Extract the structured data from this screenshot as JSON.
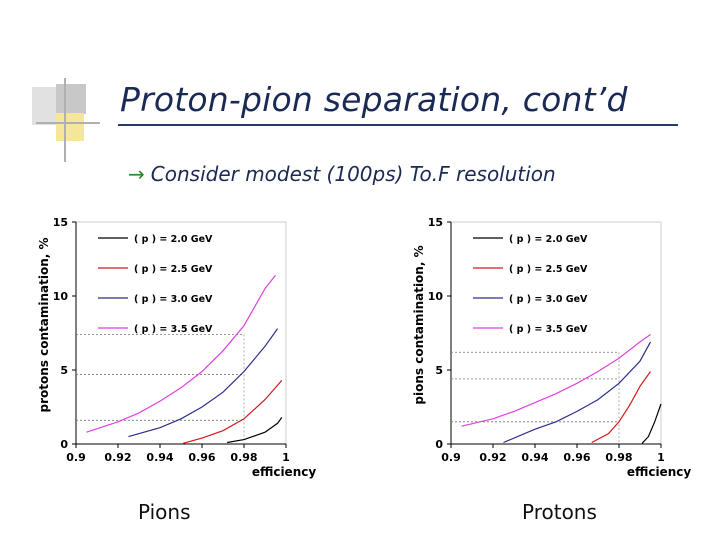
{
  "slide": {
    "title": "Proton-pion separation, cont’d",
    "bullet_arrow": "→",
    "bullet_text": "Consider modest (100ps) To.F resolution",
    "captions": [
      "Pions",
      "Protons"
    ]
  },
  "colors": {
    "deco_light": "#e1e1e1",
    "deco_mid": "#c8c8c8",
    "deco_yellow": "#f4e79a",
    "deco_lines": "#b0b0b0",
    "title": "#1b2a55",
    "arrow": "#2e8a2e",
    "series": [
      "#000000",
      "#d11a1a",
      "#2a2f8a",
      "#e040e0"
    ]
  },
  "chart_data": [
    {
      "type": "line",
      "panel": "pions",
      "xlabel": "efficiency",
      "ylabel": "protons contamination, %",
      "xlim": [
        0.9,
        1.0
      ],
      "ylim": [
        0,
        15
      ],
      "xticks": [
        "0.9",
        "0.92",
        "0.94",
        "0.96",
        "0.98",
        "1"
      ],
      "yticks": [
        "0",
        "5",
        "10",
        "15"
      ],
      "legend_position": "top-left",
      "series": [
        {
          "name": "( p ) = 2.0 GeV",
          "x": [
            0.972,
            0.98,
            0.99,
            0.996,
            0.998
          ],
          "y": [
            0.1,
            0.3,
            0.8,
            1.4,
            1.8
          ]
        },
        {
          "name": "( p ) = 2.5 GeV",
          "x": [
            0.951,
            0.96,
            0.97,
            0.98,
            0.99,
            0.998
          ],
          "y": [
            0.05,
            0.4,
            0.9,
            1.7,
            3.0,
            4.3
          ]
        },
        {
          "name": "( p ) = 3.0 GeV",
          "x": [
            0.925,
            0.94,
            0.95,
            0.96,
            0.97,
            0.98,
            0.99,
            0.996
          ],
          "y": [
            0.5,
            1.1,
            1.7,
            2.5,
            3.5,
            4.9,
            6.6,
            7.8
          ]
        },
        {
          "name": "( p ) = 3.5 GeV",
          "x": [
            0.905,
            0.92,
            0.93,
            0.94,
            0.95,
            0.96,
            0.97,
            0.98,
            0.99,
            0.995
          ],
          "y": [
            0.8,
            1.5,
            2.1,
            2.9,
            3.8,
            4.9,
            6.3,
            8.0,
            10.5,
            11.4
          ]
        }
      ],
      "reference_lines": {
        "x": 0.98,
        "y": [
          1.6,
          4.7,
          7.4
        ]
      }
    },
    {
      "type": "line",
      "panel": "protons",
      "xlabel": "efficiency",
      "ylabel": "pions contamination, %",
      "xlim": [
        0.9,
        1.0
      ],
      "ylim": [
        0,
        15
      ],
      "xticks": [
        "0.9",
        "0.92",
        "0.94",
        "0.96",
        "0.98",
        "1"
      ],
      "yticks": [
        "0",
        "5",
        "10",
        "15"
      ],
      "legend_position": "top-left",
      "series": [
        {
          "name": "( p ) = 2.0 GeV",
          "x": [
            0.991,
            0.994,
            0.997,
            1.0
          ],
          "y": [
            0.05,
            0.5,
            1.5,
            2.7
          ]
        },
        {
          "name": "( p ) = 2.5 GeV",
          "x": [
            0.967,
            0.975,
            0.98,
            0.985,
            0.99,
            0.995
          ],
          "y": [
            0.1,
            0.7,
            1.5,
            2.6,
            3.9,
            4.9
          ]
        },
        {
          "name": "( p ) = 3.0 GeV",
          "x": [
            0.925,
            0.94,
            0.95,
            0.96,
            0.97,
            0.98,
            0.99,
            0.995
          ],
          "y": [
            0.1,
            1.0,
            1.5,
            2.2,
            3.0,
            4.1,
            5.6,
            6.9
          ]
        },
        {
          "name": "( p ) = 3.5 GeV",
          "x": [
            0.905,
            0.92,
            0.93,
            0.94,
            0.95,
            0.96,
            0.97,
            0.98,
            0.99,
            0.995
          ],
          "y": [
            1.2,
            1.7,
            2.2,
            2.8,
            3.4,
            4.1,
            4.9,
            5.8,
            6.9,
            7.4
          ]
        }
      ],
      "reference_lines": {
        "x": 0.98,
        "y": [
          1.5,
          4.4,
          6.2
        ]
      }
    }
  ]
}
